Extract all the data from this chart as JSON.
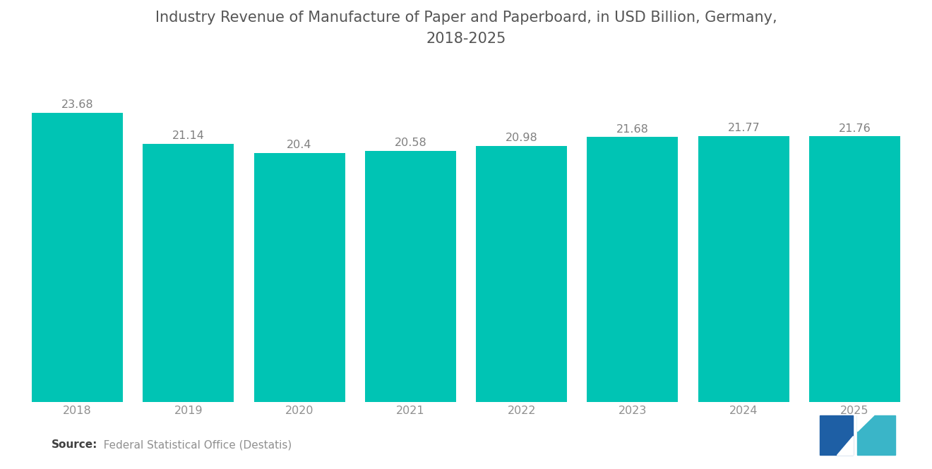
{
  "title": "Industry Revenue of Manufacture of Paper and Paperboard, in USD Billion, Germany,\n2018-2025",
  "categories": [
    "2018",
    "2019",
    "2020",
    "2021",
    "2022",
    "2023",
    "2024",
    "2025"
  ],
  "values": [
    23.68,
    21.14,
    20.4,
    20.58,
    20.98,
    21.68,
    21.77,
    21.76
  ],
  "bar_color": "#00C4B4",
  "background_color": "#FFFFFF",
  "title_fontsize": 15,
  "label_fontsize": 11.5,
  "tick_fontsize": 11.5,
  "source_text_bold": "Source:",
  "source_text_normal": "   Federal Statistical Office (Destatis)",
  "source_fontsize": 11,
  "ylim": [
    0,
    27
  ],
  "bar_width": 0.82,
  "value_label_color": "#808080",
  "tick_label_color": "#909090",
  "title_color": "#555555",
  "logo_color_blue": "#1e5fa5",
  "logo_color_teal": "#3ab5c8"
}
